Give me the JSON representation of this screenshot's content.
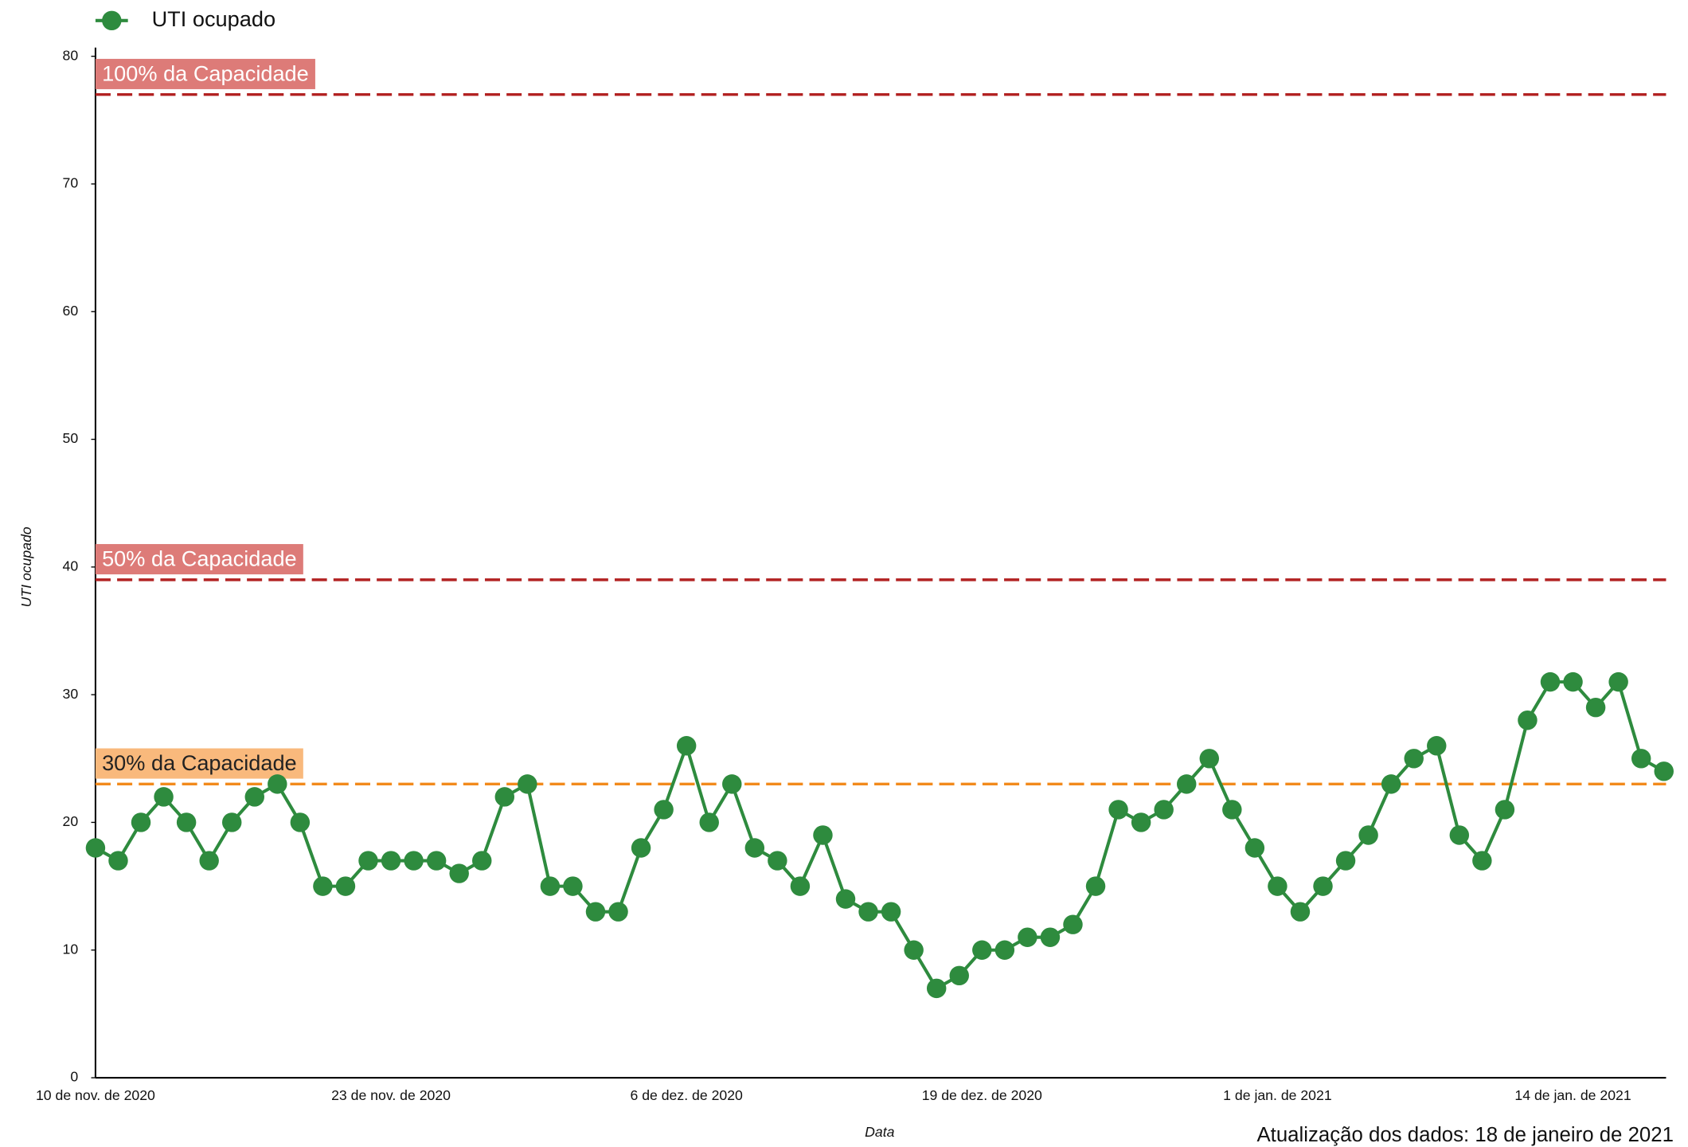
{
  "chart_data": {
    "type": "line",
    "legend_position": "top-left",
    "x_label": "Data",
    "y_label": "UTI ocupado",
    "footer": "Atualização dos dados: 18 de janeiro de 2021",
    "categories": [
      "10 de nov. de 2020",
      null,
      null,
      null,
      null,
      null,
      null,
      null,
      null,
      null,
      null,
      null,
      null,
      "23 de nov. de 2020",
      null,
      null,
      null,
      null,
      null,
      null,
      null,
      null,
      null,
      null,
      null,
      null,
      "6 de dez. de 2020",
      null,
      null,
      null,
      null,
      null,
      null,
      null,
      null,
      null,
      null,
      null,
      null,
      "19 de dez. de 2020",
      null,
      null,
      null,
      null,
      null,
      null,
      null,
      null,
      null,
      null,
      null,
      null,
      "1 de jan. de 2021",
      null,
      null,
      null,
      null,
      null,
      null,
      null,
      null,
      null,
      null,
      null,
      null,
      "14 de jan. de 2021",
      null,
      null,
      null,
      null
    ],
    "series": [
      {
        "name": "UTI ocupado",
        "color": "#2e8b3e",
        "values": [
          18,
          17,
          20,
          22,
          20,
          17,
          20,
          22,
          23,
          20,
          15,
          15,
          17,
          17,
          17,
          17,
          16,
          17,
          22,
          23,
          15,
          15,
          13,
          13,
          18,
          21,
          26,
          20,
          23,
          18,
          17,
          15,
          19,
          14,
          13,
          13,
          10,
          7,
          8,
          10,
          10,
          11,
          11,
          12,
          15,
          21,
          20,
          21,
          23,
          25,
          21,
          18,
          15,
          13,
          15,
          17,
          19,
          23,
          25,
          26,
          19,
          17,
          21,
          28,
          31,
          31,
          29,
          31,
          25,
          24
        ]
      }
    ],
    "reference_lines": [
      {
        "value": 77,
        "label": "100% da Capacidade",
        "color": "#b22222",
        "label_background": "#dd7b78",
        "label_color": "#ffffff"
      },
      {
        "value": 39,
        "label": "50% da Capacidade",
        "color": "#b22222",
        "label_background": "#dd7b78",
        "label_color": "#ffffff"
      },
      {
        "value": 23,
        "label": "30% da Capacidade",
        "color": "#f28a1c",
        "label_background": "#f9b97c",
        "label_color": "#222222"
      }
    ],
    "ylim": [
      0,
      80
    ],
    "yticks": [
      0,
      10,
      20,
      30,
      40,
      50,
      60,
      70,
      80
    ],
    "grid": false
  }
}
